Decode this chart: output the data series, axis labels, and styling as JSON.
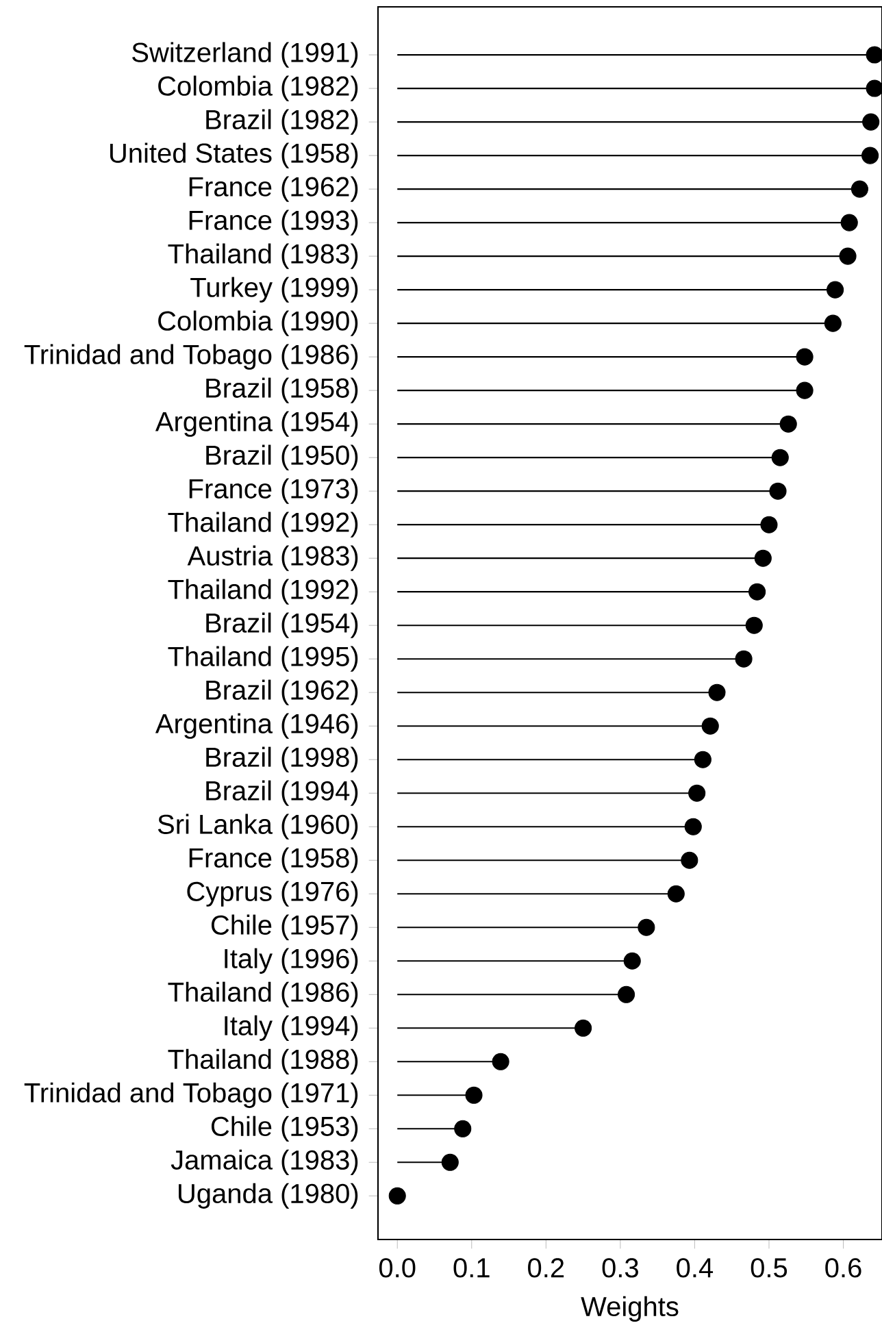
{
  "chart_data": {
    "type": "lollipop",
    "orientation": "horizontal",
    "xlabel": "Weights",
    "color": "#000000",
    "marker": "circle",
    "categories": [
      "Switzerland (1991)",
      "Colombia (1982)",
      "Brazil (1982)",
      "United States (1958)",
      "France (1962)",
      "France (1993)",
      "Thailand (1983)",
      "Turkey (1999)",
      "Colombia (1990)",
      "Trinidad and Tobago (1986)",
      "Brazil (1958)",
      "Argentina (1954)",
      "Brazil (1950)",
      "France (1973)",
      "Thailand (1992)",
      "Austria (1983)",
      "Thailand (1992)",
      "Brazil (1954)",
      "Thailand (1995)",
      "Brazil (1962)",
      "Argentina (1946)",
      "Brazil (1998)",
      "Brazil (1994)",
      "Sri Lanka (1960)",
      "France (1958)",
      "Cyprus (1976)",
      "Chile (1957)",
      "Italy (1996)",
      "Thailand (1986)",
      "Italy (1994)",
      "Thailand (1988)",
      "Trinidad and Tobago (1971)",
      "Chile (1953)",
      "Jamaica (1983)",
      "Uganda (1980)"
    ],
    "values": [
      0.642,
      0.642,
      0.637,
      0.636,
      0.622,
      0.608,
      0.606,
      0.589,
      0.586,
      0.548,
      0.548,
      0.526,
      0.515,
      0.512,
      0.5,
      0.492,
      0.484,
      0.48,
      0.466,
      0.43,
      0.421,
      0.411,
      0.403,
      0.398,
      0.393,
      0.375,
      0.335,
      0.316,
      0.308,
      0.25,
      0.139,
      0.103,
      0.088,
      0.071,
      0.0
    ],
    "xlim": [
      -0.026,
      0.652
    ],
    "xticks": [
      {
        "value": 0,
        "label": "0.0"
      },
      {
        "value": 0.1,
        "label": "0.1"
      },
      {
        "value": 0.2,
        "label": "0.2"
      },
      {
        "value": 0.3,
        "label": "0.3"
      },
      {
        "value": 0.4,
        "label": "0.4"
      },
      {
        "value": 0.5,
        "label": "0.5"
      },
      {
        "value": 0.6,
        "label": "0.6"
      }
    ]
  }
}
